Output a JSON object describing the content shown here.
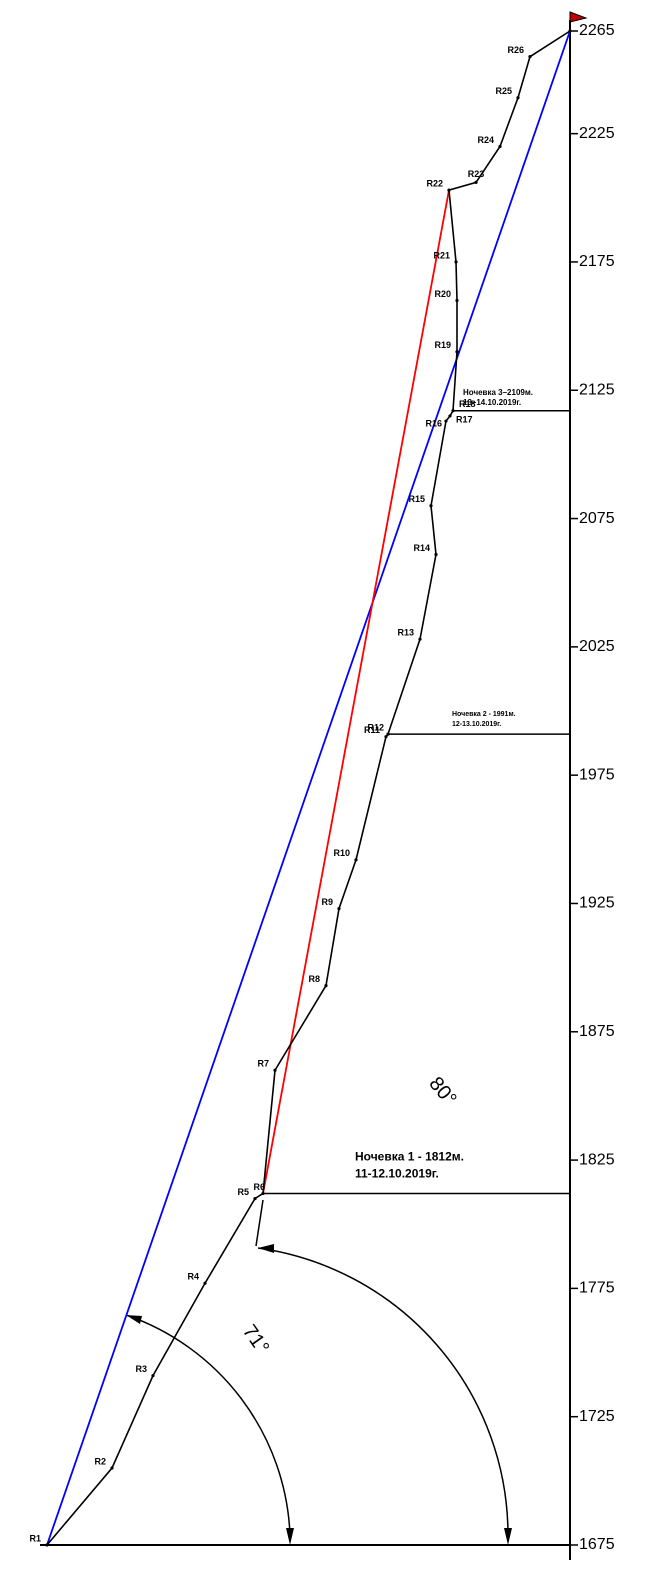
{
  "chart_data": {
    "type": "line",
    "categories": [
      "R1",
      "R2",
      "R3",
      "R4",
      "R5",
      "R6",
      "R7",
      "R8",
      "R9",
      "R10",
      "R11",
      "R12",
      "R13",
      "R14",
      "R15",
      "R16",
      "R17",
      "R18",
      "R19",
      "R20",
      "R21",
      "R22",
      "R23",
      "R24",
      "R25",
      "R26",
      null
    ],
    "values": [
      1675,
      1705,
      1741,
      1777,
      1810,
      1812,
      1860,
      1893,
      1923,
      1942,
      1990,
      1991,
      2028,
      2061,
      2080,
      2113,
      2115,
      2117,
      2140,
      2160,
      2175,
      2203,
      2206,
      2220,
      2239,
      2255,
      2265
    ],
    "color": "#000000",
    "direct_line_color": "#0000ff",
    "ridge_line_color": "#ff0000",
    "ylim": [
      1675,
      2265
    ],
    "yticks": [
      1675,
      1725,
      1775,
      1825,
      1875,
      1925,
      1975,
      2025,
      2075,
      2125,
      2175,
      2225,
      2265
    ],
    "bivouacs": [
      {
        "lines": [
          "Ночевка 1 - 1812м.",
          "11-12.10.2019г."
        ]
      },
      {
        "lines": [
          "Ночевка 2 - 1991м.",
          "12-13.10.2019г."
        ]
      },
      {
        "lines": [
          "Ночевка 3–2109м.",
          "13–14.10.2019г."
        ]
      }
    ],
    "angles": [
      "71°",
      "80°"
    ]
  }
}
